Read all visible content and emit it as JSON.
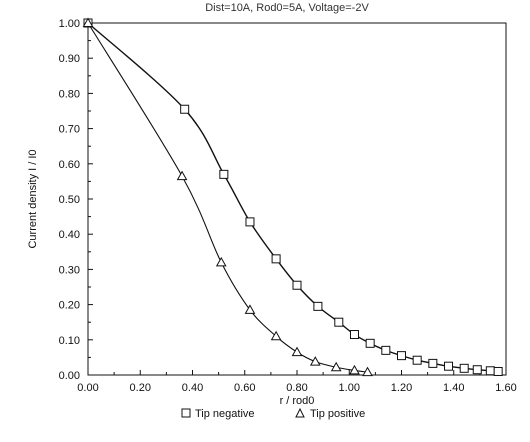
{
  "chart_data": {
    "type": "scatter",
    "title": "Dist=10A, Rod0=5A, Voltage=-2V",
    "xlabel": "r / rod0",
    "ylabel": "Current density I / I0",
    "xlim": [
      0,
      1.6
    ],
    "ylim": [
      0,
      1.0
    ],
    "x_ticks": [
      "0.00",
      "0.20",
      "0.40",
      "0.60",
      "0.80",
      "1.00",
      "1.20",
      "1.40",
      "1.60"
    ],
    "y_ticks": [
      "0.00",
      "0.10",
      "0.20",
      "0.30",
      "0.40",
      "0.50",
      "0.60",
      "0.70",
      "0.80",
      "0.90",
      "1.00"
    ],
    "legend_position": "bottom",
    "series": [
      {
        "name": "Tip negative",
        "marker": "square",
        "points": [
          [
            0.0,
            1.0
          ],
          [
            0.37,
            0.755
          ],
          [
            0.52,
            0.57
          ],
          [
            0.62,
            0.435
          ],
          [
            0.72,
            0.33
          ],
          [
            0.8,
            0.255
          ],
          [
            0.88,
            0.195
          ],
          [
            0.96,
            0.15
          ],
          [
            1.02,
            0.115
          ],
          [
            1.08,
            0.09
          ],
          [
            1.14,
            0.07
          ],
          [
            1.2,
            0.055
          ],
          [
            1.26,
            0.042
          ],
          [
            1.32,
            0.033
          ],
          [
            1.38,
            0.025
          ],
          [
            1.44,
            0.019
          ],
          [
            1.49,
            0.015
          ],
          [
            1.54,
            0.012
          ],
          [
            1.57,
            0.01
          ]
        ]
      },
      {
        "name": "Tip positive",
        "marker": "triangle",
        "points": [
          [
            0.0,
            1.0
          ],
          [
            0.36,
            0.565
          ],
          [
            0.51,
            0.32
          ],
          [
            0.62,
            0.185
          ],
          [
            0.72,
            0.11
          ],
          [
            0.8,
            0.065
          ],
          [
            0.87,
            0.038
          ],
          [
            0.95,
            0.022
          ],
          [
            1.02,
            0.013
          ],
          [
            1.07,
            0.008
          ]
        ]
      }
    ],
    "colors": {
      "line": "#111111",
      "background": "#ffffff"
    }
  }
}
